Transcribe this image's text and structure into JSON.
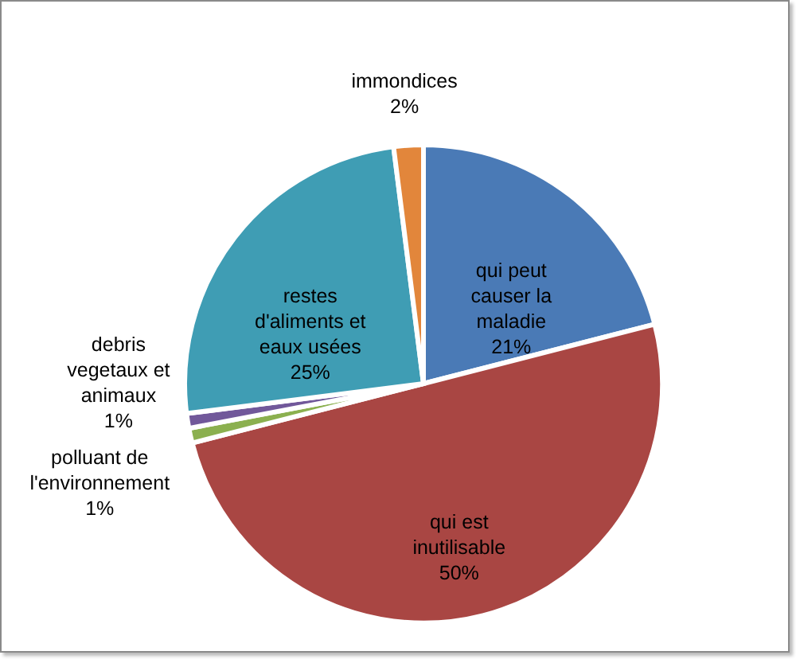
{
  "chart_data": {
    "type": "pie",
    "categories": [
      "qui peut causer la maladie",
      "qui est inutilisable",
      "polluant de l'environnement",
      "debris vegetaux et animaux",
      "restes d'aliments et eaux usées",
      "immondices"
    ],
    "values": [
      21,
      50,
      1,
      1,
      25,
      2
    ],
    "colors": [
      "#4a7ab6",
      "#a94643",
      "#8bb04f",
      "#71589a",
      "#3f9db4",
      "#e2863b"
    ],
    "value_labels": [
      "21%",
      "50%",
      "1%",
      "1%",
      "25%",
      "2%"
    ]
  }
}
